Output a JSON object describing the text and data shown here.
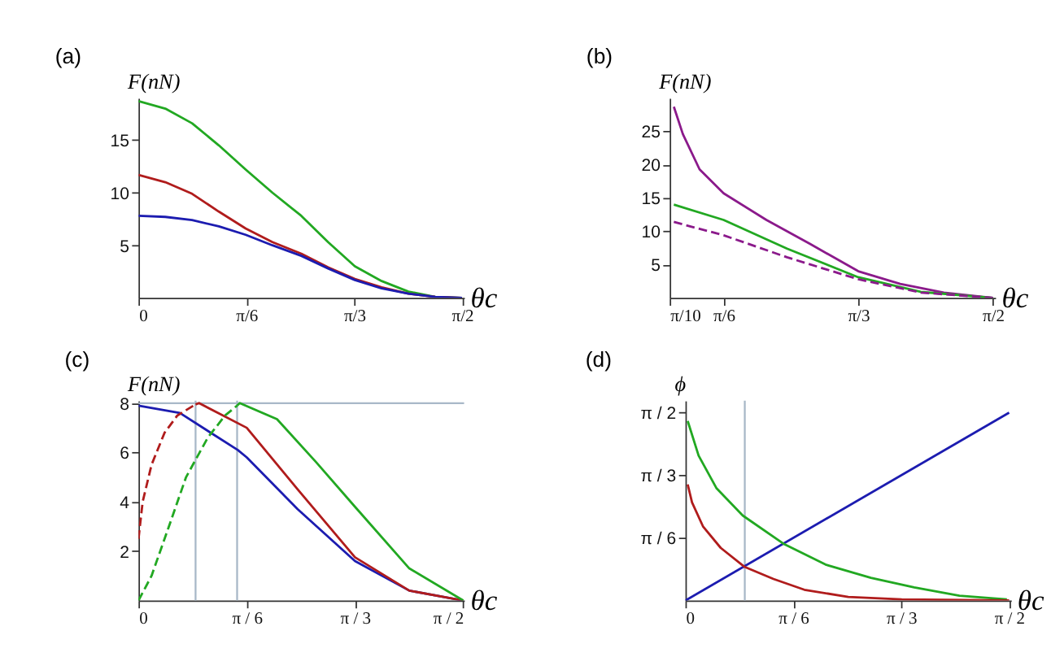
{
  "chart_data": [
    {
      "type": "line",
      "title": "(a)",
      "ylabel": "F(nN)",
      "xlabel": "θc",
      "xlim": [
        0,
        1.58
      ],
      "ylim": [
        0,
        19
      ],
      "xticks": [
        {
          "value": 0,
          "label": "0"
        },
        {
          "value": 0.5236,
          "label": "π/6"
        },
        {
          "value": 1.0472,
          "label": "π/3"
        },
        {
          "value": 1.5708,
          "label": "π/2"
        }
      ],
      "yticks": [
        5,
        10,
        15
      ],
      "x": [
        0,
        0.13,
        0.26,
        0.39,
        0.52,
        0.65,
        0.79,
        0.92,
        1.05,
        1.18,
        1.31,
        1.44,
        1.57
      ],
      "series": [
        {
          "color": "#22a822",
          "values": [
            18.7,
            18.0,
            16.6,
            14.5,
            12.2,
            10.0,
            7.8,
            5.3,
            3.0,
            1.6,
            0.6,
            0.1,
            0
          ]
        },
        {
          "color": "#b01c1c",
          "values": [
            11.7,
            11.0,
            9.9,
            8.2,
            6.6,
            5.3,
            4.2,
            2.9,
            1.8,
            1.0,
            0.4,
            0.1,
            0
          ]
        },
        {
          "color": "#1c1cb0",
          "values": [
            7.8,
            7.7,
            7.4,
            6.8,
            6.0,
            5.0,
            4.0,
            2.8,
            1.7,
            0.9,
            0.4,
            0.1,
            0
          ]
        }
      ],
      "grid": false
    },
    {
      "type": "line",
      "title": "(b)",
      "ylabel": "F(nN)",
      "xlabel": "θc",
      "xlim": [
        0.314,
        1.58
      ],
      "ylim": [
        0,
        30
      ],
      "xticks": [
        {
          "value": 0.3142,
          "label": "π/10"
        },
        {
          "value": 0.5236,
          "label": "π/6"
        },
        {
          "value": 1.0472,
          "label": "π/3"
        },
        {
          "value": 1.5708,
          "label": "π/2"
        }
      ],
      "yticks": [
        5,
        10,
        15,
        20,
        25
      ],
      "series": [
        {
          "color": "#8b1a8b",
          "line_style": "solid",
          "x": [
            0.33,
            0.365,
            0.43,
            0.5236,
            0.69,
            0.86,
            1.0472,
            1.21,
            1.38,
            1.5708
          ],
          "values": [
            28.7,
            24.6,
            19.3,
            15.7,
            11.7,
            8.1,
            4.0,
            2.1,
            0.8,
            0
          ]
        },
        {
          "color": "#22a822",
          "line_style": "solid",
          "x": [
            0.33,
            0.5236,
            0.77,
            1.0472,
            1.29,
            1.5708
          ],
          "values": [
            14.0,
            11.7,
            7.4,
            3.1,
            0.9,
            0
          ]
        },
        {
          "color": "#8b1a8b",
          "line_style": "dashed",
          "x": [
            0.33,
            0.5236,
            0.77,
            1.0472,
            1.29,
            1.5708
          ],
          "values": [
            11.4,
            9.4,
            6.1,
            2.8,
            0.8,
            0
          ]
        }
      ],
      "grid": false
    },
    {
      "type": "line",
      "title": "(c)",
      "ylabel": "F(nN)",
      "xlabel": "θc",
      "xlim": [
        0,
        1.575
      ],
      "ylim": [
        0,
        8.1
      ],
      "xticks": [
        {
          "value": 0,
          "label": "0"
        },
        {
          "value": 0.5236,
          "label": "π / 6"
        },
        {
          "value": 1.0472,
          "label": "π / 3"
        },
        {
          "value": 1.5708,
          "label": "π / 2"
        }
      ],
      "yticks": [
        2,
        4,
        6,
        8
      ],
      "series": [
        {
          "color": "#1c1cb0",
          "line_style": "solid",
          "x": [
            0,
            0.2,
            0.48,
            0.5236,
            0.77,
            1.0472,
            1.31,
            1.5708
          ],
          "values": [
            7.9,
            7.6,
            6.1,
            5.8,
            3.7,
            1.6,
            0.4,
            0
          ]
        },
        {
          "color": "#b01c1c",
          "line_style": "dashed",
          "x": [
            0,
            0.02,
            0.063,
            0.126,
            0.188,
            0.276
          ],
          "values": [
            2.5,
            4.0,
            5.5,
            6.8,
            7.5,
            7.95
          ]
        },
        {
          "color": "#b01c1c",
          "line_style": "solid",
          "x": [
            0.276,
            0.293,
            0.5236,
            0.77,
            1.0472,
            1.31,
            1.5708
          ],
          "values": [
            7.95,
            8.0,
            7.0,
            4.5,
            1.75,
            0.4,
            0
          ]
        },
        {
          "color": "#22a822",
          "line_style": "dashed",
          "x": [
            0,
            0.063,
            0.147,
            0.23,
            0.335,
            0.419,
            0.477
          ],
          "values": [
            0,
            1.0,
            3.0,
            5.0,
            6.6,
            7.5,
            7.9
          ]
        },
        {
          "color": "#22a822",
          "line_style": "solid",
          "x": [
            0.477,
            0.49,
            0.67,
            0.86,
            1.0472,
            1.31,
            1.5708
          ],
          "values": [
            7.9,
            8.0,
            7.35,
            5.6,
            3.8,
            1.3,
            0
          ]
        }
      ],
      "ref_lines": [
        {
          "axis": "x",
          "value": 0.276,
          "color": "#a8b8c8"
        },
        {
          "axis": "x",
          "value": 0.477,
          "color": "#a8b8c8"
        },
        {
          "axis": "y",
          "value": 8,
          "color": "#a8b8c8"
        }
      ],
      "grid": false
    },
    {
      "type": "line",
      "title": "(d)",
      "ylabel": "ϕ",
      "xlabel": "θc",
      "xlim": [
        0,
        1.58
      ],
      "ylim": [
        0,
        1.67
      ],
      "xticks": [
        {
          "value": 0,
          "label": "0"
        },
        {
          "value": 0.5236,
          "label": "π / 6"
        },
        {
          "value": 1.0472,
          "label": "π / 3"
        },
        {
          "value": 1.5708,
          "label": "π / 2"
        }
      ],
      "yticks": [
        {
          "value": 0.5236,
          "label": "π / 6"
        },
        {
          "value": 1.0472,
          "label": "π / 3"
        },
        {
          "value": 1.5708,
          "label": "π / 2"
        }
      ],
      "series": [
        {
          "color": "#1c1cb0",
          "x": [
            0,
            1.5708
          ],
          "values": [
            0,
            1.57
          ]
        },
        {
          "color": "#22a822",
          "x": [
            0.011,
            0.064,
            0.15,
            0.278,
            0.48,
            0.68,
            0.9,
            1.11,
            1.33,
            1.56
          ],
          "values": [
            1.5,
            1.21,
            0.94,
            0.71,
            0.47,
            0.3,
            0.19,
            0.11,
            0.04,
            0.01
          ]
        },
        {
          "color": "#b01c1c",
          "x": [
            0.011,
            0.032,
            0.085,
            0.171,
            0.288,
            0.427,
            0.577,
            0.79,
            1.05,
            1.5708
          ],
          "values": [
            0.97,
            0.82,
            0.62,
            0.44,
            0.28,
            0.18,
            0.09,
            0.03,
            0.01,
            0
          ]
        }
      ],
      "ref_lines": [
        {
          "axis": "x",
          "value": 0.288,
          "color": "#a8b8c8"
        }
      ],
      "grid": false
    }
  ]
}
